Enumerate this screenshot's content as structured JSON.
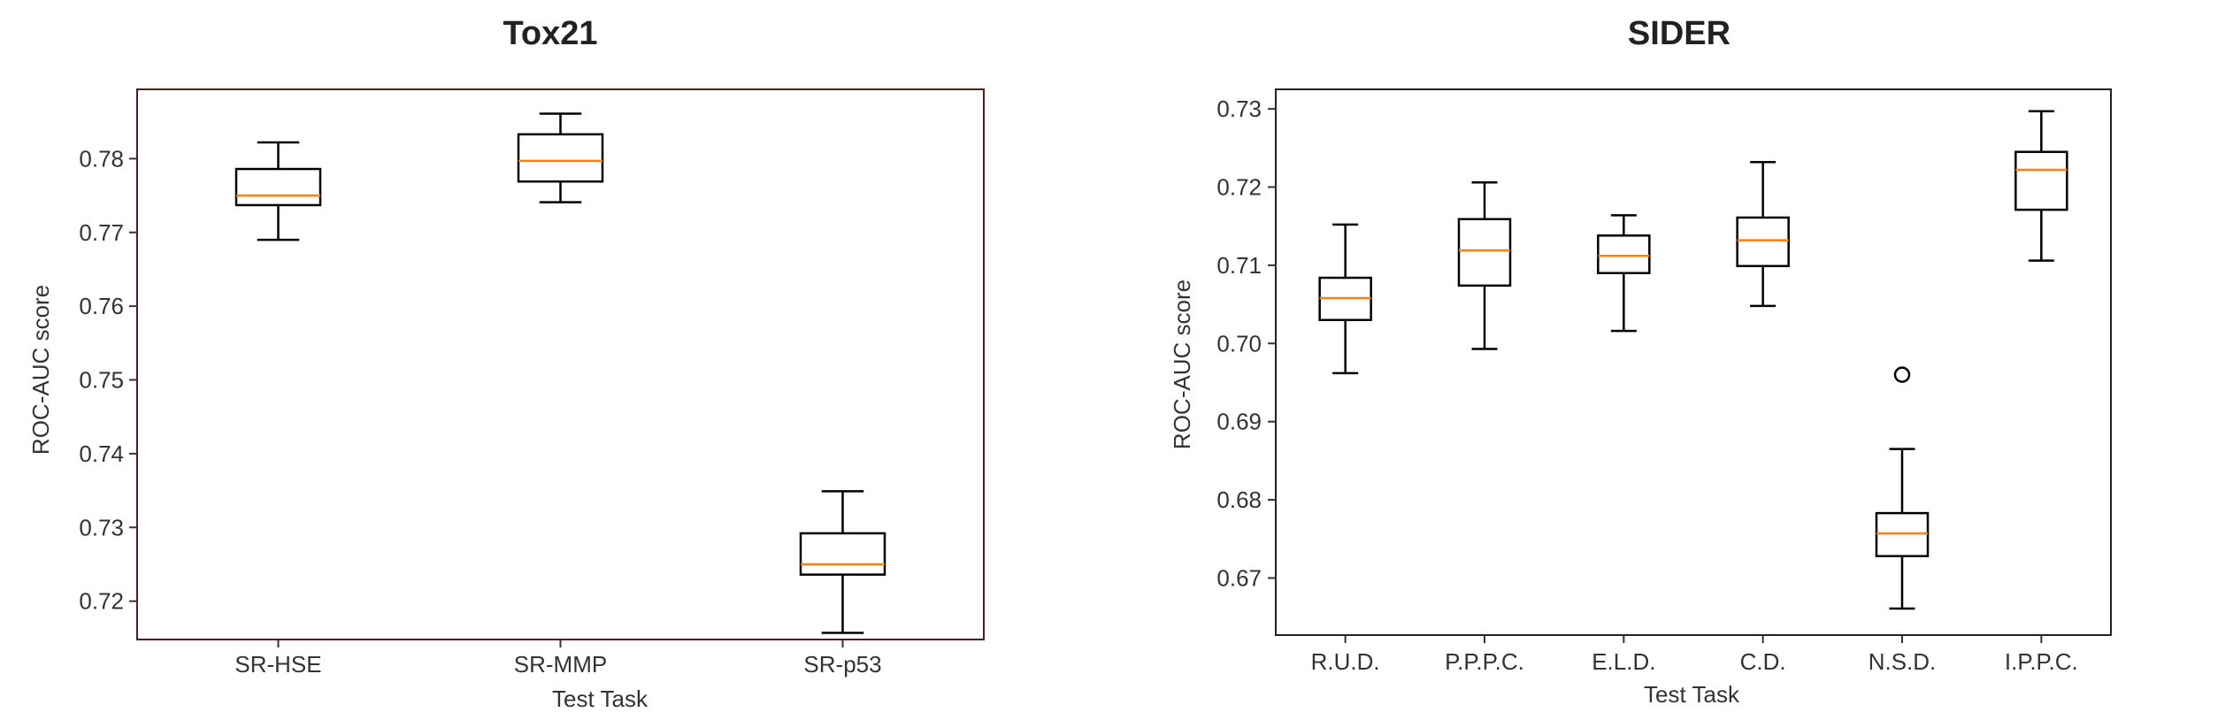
{
  "figure": {
    "background": "#ffffff"
  },
  "chart_data": [
    {
      "type": "box",
      "title": "Tox21",
      "xlabel": "Test Task",
      "ylabel": "ROC-AUC score",
      "ylim": [
        0.7148,
        0.7894
      ],
      "yticks": [
        0.72,
        0.73,
        0.74,
        0.75,
        0.76,
        0.77,
        0.78
      ],
      "ytick_labels": [
        "0.72",
        "0.73",
        "0.74",
        "0.75",
        "0.76",
        "0.77",
        "0.78"
      ],
      "grid": false,
      "colors": {
        "box": "#000000",
        "median": "#ff7f0e",
        "frame": "#4a1f1f"
      },
      "categories": [
        "SR-HSE",
        "SR-MMP",
        "SR-p53"
      ],
      "boxes": [
        {
          "category": "SR-HSE",
          "whisker_low": 0.769,
          "q1": 0.7737,
          "median": 0.775,
          "q3": 0.7786,
          "whisker_high": 0.7822,
          "outliers": []
        },
        {
          "category": "SR-MMP",
          "whisker_low": 0.7741,
          "q1": 0.7769,
          "median": 0.7797,
          "q3": 0.7833,
          "whisker_high": 0.7861,
          "outliers": []
        },
        {
          "category": "SR-p53",
          "whisker_low": 0.7157,
          "q1": 0.7236,
          "median": 0.725,
          "q3": 0.7292,
          "whisker_high": 0.7349,
          "outliers": []
        }
      ]
    },
    {
      "type": "box",
      "title": "SIDER",
      "xlabel": "Test Task",
      "ylabel": "ROC-AUC score",
      "ylim": [
        0.6627,
        0.7325
      ],
      "yticks": [
        0.67,
        0.68,
        0.69,
        0.7,
        0.71,
        0.72,
        0.73
      ],
      "ytick_labels": [
        "0.67",
        "0.68",
        "0.69",
        "0.70",
        "0.71",
        "0.72",
        "0.73"
      ],
      "grid": false,
      "colors": {
        "box": "#000000",
        "median": "#ff7f0e",
        "frame": "#222222"
      },
      "categories": [
        "R.U.D.",
        "P.P.P.C.",
        "E.L.D.",
        "C.D.",
        "N.S.D.",
        "I.P.P.C."
      ],
      "boxes": [
        {
          "category": "R.U.D.",
          "whisker_low": 0.6962,
          "q1": 0.703,
          "median": 0.7058,
          "q3": 0.7084,
          "whisker_high": 0.7152,
          "outliers": []
        },
        {
          "category": "P.P.P.C.",
          "whisker_low": 0.6993,
          "q1": 0.7074,
          "median": 0.7119,
          "q3": 0.7159,
          "whisker_high": 0.7206,
          "outliers": []
        },
        {
          "category": "E.L.D.",
          "whisker_low": 0.7016,
          "q1": 0.709,
          "median": 0.7112,
          "q3": 0.7138,
          "whisker_high": 0.7164,
          "outliers": []
        },
        {
          "category": "C.D.",
          "whisker_low": 0.7048,
          "q1": 0.7099,
          "median": 0.7132,
          "q3": 0.7161,
          "whisker_high": 0.7232,
          "outliers": []
        },
        {
          "category": "N.S.D.",
          "whisker_low": 0.6661,
          "q1": 0.6728,
          "median": 0.6757,
          "q3": 0.6783,
          "whisker_high": 0.6865,
          "outliers": [
            0.696
          ]
        },
        {
          "category": "I.P.P.C.",
          "whisker_low": 0.7106,
          "q1": 0.7171,
          "median": 0.7222,
          "q3": 0.7245,
          "whisker_high": 0.7297,
          "outliers": []
        }
      ]
    }
  ]
}
